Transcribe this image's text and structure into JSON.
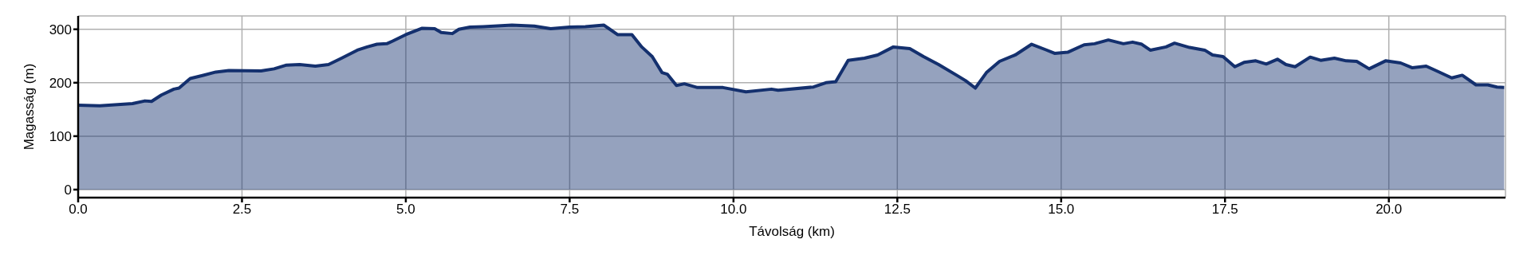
{
  "chart_data": {
    "type": "area",
    "xlabel": "Távolság (km)",
    "ylabel": "Magasság (m)",
    "x": [
      0,
      0.33,
      0.83,
      1.02,
      1.12,
      1.27,
      1.46,
      1.54,
      1.71,
      1.91,
      2.1,
      2.3,
      2.79,
      2.99,
      3.18,
      3.38,
      3.62,
      3.82,
      4.02,
      4.26,
      4.41,
      4.56,
      4.71,
      4.8,
      5.0,
      5.25,
      5.44,
      5.54,
      5.71,
      5.81,
      5.98,
      6.18,
      6.62,
      6.96,
      7.21,
      7.5,
      7.74,
      8.02,
      8.23,
      8.45,
      8.6,
      8.76,
      8.91,
      8.99,
      9.13,
      9.25,
      9.45,
      9.84,
      10.19,
      10.58,
      10.68,
      11.22,
      11.41,
      11.56,
      11.75,
      12.0,
      12.2,
      12.44,
      12.69,
      12.9,
      13.13,
      13.42,
      13.54,
      13.69,
      13.86,
      14.06,
      14.3,
      14.55,
      14.76,
      14.9,
      15.1,
      15.35,
      15.51,
      15.72,
      15.95,
      16.09,
      16.23,
      16.36,
      16.6,
      16.73,
      16.96,
      17.19,
      17.31,
      17.47,
      17.65,
      17.79,
      17.97,
      18.13,
      18.3,
      18.43,
      18.57,
      18.8,
      18.96,
      19.17,
      19.35,
      19.51,
      19.7,
      19.95,
      20.18,
      20.36,
      20.57,
      20.75,
      20.96,
      21.12,
      21.33,
      21.51,
      21.65,
      21.76
    ],
    "series": [
      {
        "color": "#14306e",
        "values": [
          158,
          157,
          161,
          166,
          165,
          177,
          188,
          190,
          208,
          214,
          220,
          223,
          222,
          226,
          233,
          234,
          231,
          234,
          246,
          261,
          267,
          272,
          273,
          278,
          290,
          302,
          301,
          294,
          292,
          300,
          304,
          305,
          308,
          306,
          301,
          304,
          305,
          308,
          290,
          290,
          267,
          249,
          219,
          216,
          195,
          198,
          191,
          191,
          183,
          188,
          186,
          192,
          200,
          202,
          242,
          246,
          252,
          267,
          264,
          249,
          234,
          213,
          204,
          190,
          219,
          240,
          252,
          272,
          262,
          255,
          257,
          271,
          273,
          280,
          273,
          276,
          272,
          261,
          267,
          274,
          266,
          261,
          252,
          249,
          230,
          238,
          241,
          235,
          244,
          234,
          230,
          248,
          242,
          246,
          241,
          240,
          226,
          241,
          237,
          228,
          231,
          221,
          209,
          214,
          196,
          196,
          192,
          191
        ]
      }
    ],
    "xlim": [
      0,
      21.78
    ],
    "ylim": [
      -15,
      325
    ],
    "xticks": [
      {
        "value": 0,
        "label": "0.0"
      },
      {
        "value": 2.5,
        "label": "2.5"
      },
      {
        "value": 5,
        "label": "5.0"
      },
      {
        "value": 7.5,
        "label": "7.5"
      },
      {
        "value": 10,
        "label": "10.0"
      },
      {
        "value": 12.5,
        "label": "12.5"
      },
      {
        "value": 15,
        "label": "15.0"
      },
      {
        "value": 17.5,
        "label": "17.5"
      },
      {
        "value": 20,
        "label": "20.0"
      }
    ],
    "yticks": [
      0,
      100,
      200,
      300
    ],
    "grid": true,
    "legend": false
  }
}
